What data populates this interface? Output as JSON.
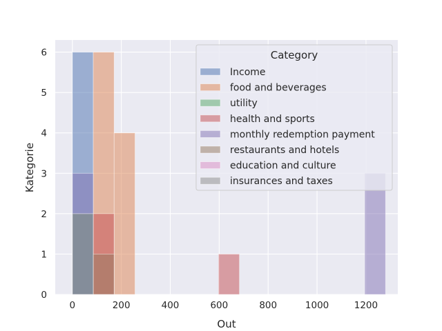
{
  "chart_data": {
    "type": "bar",
    "style": "stacked-overlay histogram",
    "title": "",
    "xlabel": "Out",
    "ylabel": "Kategorie",
    "xlim": [
      -70,
      1330
    ],
    "ylim": [
      0,
      6.3
    ],
    "xticks": [
      "0",
      "200",
      "400",
      "600",
      "800",
      "1000",
      "1200"
    ],
    "xtick_values": [
      0,
      200,
      400,
      600,
      800,
      1000,
      1200
    ],
    "yticks": [
      "0",
      "1",
      "2",
      "3",
      "4",
      "5",
      "6"
    ],
    "ytick_values": [
      0,
      1,
      2,
      3,
      4,
      5,
      6
    ],
    "grid": true,
    "background": "#eaeaf2",
    "bin_width": 85.33,
    "bin_edges": [
      0,
      85.33,
      170.67,
      256,
      341.33,
      426.67,
      512,
      597.33,
      682.67,
      768,
      853.33,
      938.67,
      1024,
      1109.33,
      1194.67,
      1280
    ],
    "legend": {
      "title": "Category",
      "position": "upper right"
    },
    "series": [
      {
        "name": "Income",
        "color": "#4c72b0",
        "values": [
          6,
          0,
          0,
          0,
          0,
          0,
          0,
          0,
          0,
          0,
          0,
          0,
          0,
          0,
          0
        ]
      },
      {
        "name": "food and beverages",
        "color": "#dd8452",
        "values": [
          0,
          6,
          4,
          0,
          0,
          0,
          0,
          0,
          0,
          0,
          0,
          0,
          0,
          0,
          0
        ]
      },
      {
        "name": "utility",
        "color": "#55a868",
        "values": [
          2,
          0,
          0,
          0,
          0,
          0,
          0,
          0,
          0,
          0,
          0,
          0,
          0,
          0,
          0
        ]
      },
      {
        "name": "health and sports",
        "color": "#c44e52",
        "values": [
          0,
          2,
          0,
          0,
          0,
          0,
          0,
          1,
          0,
          0,
          0,
          0,
          0,
          0,
          0
        ]
      },
      {
        "name": "monthly redemption payment",
        "color": "#8172b3",
        "values": [
          3,
          0,
          0,
          0,
          0,
          0,
          0,
          0,
          0,
          0,
          0,
          0,
          0,
          0,
          3
        ]
      },
      {
        "name": "restaurants and hotels",
        "color": "#937860",
        "values": [
          0,
          1,
          0,
          0,
          0,
          0,
          0,
          0,
          0,
          0,
          0,
          0,
          0,
          0,
          0
        ]
      },
      {
        "name": "education and culture",
        "color": "#da8bc3",
        "values": [
          0,
          0,
          0,
          0,
          0,
          0,
          0,
          0,
          0,
          0,
          0,
          0,
          0,
          0,
          0
        ]
      },
      {
        "name": "insurances and taxes",
        "color": "#8c8c8c",
        "values": [
          2,
          0,
          0,
          0,
          0,
          0,
          0,
          0,
          0,
          0,
          0,
          0,
          0,
          0,
          0
        ]
      }
    ]
  }
}
